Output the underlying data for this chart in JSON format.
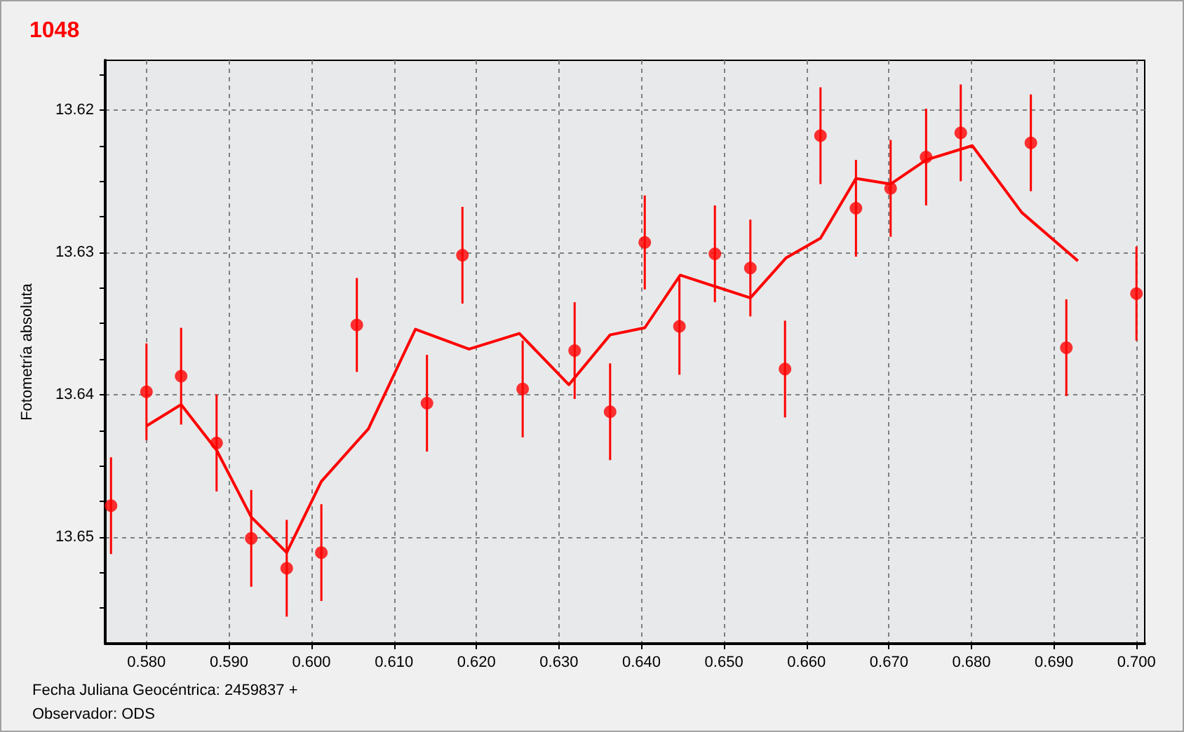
{
  "chart_data": {
    "type": "scatter",
    "title": "1048",
    "ylabel": "Fotometría absoluta",
    "annotations": [
      "Fecha Juliana Geocéntrica: 2459837 +",
      "Observador: ODS"
    ],
    "xlim": [
      0.575,
      0.701
    ],
    "ylim": [
      13.6575,
      13.6165
    ],
    "xticks": [
      {
        "value": 0.58,
        "label": "0.580"
      },
      {
        "value": 0.59,
        "label": "0.590"
      },
      {
        "value": 0.6,
        "label": "0.600"
      },
      {
        "value": 0.61,
        "label": "0.610"
      },
      {
        "value": 0.62,
        "label": "0.620"
      },
      {
        "value": 0.63,
        "label": "0.630"
      },
      {
        "value": 0.64,
        "label": "0.640"
      },
      {
        "value": 0.65,
        "label": "0.650"
      },
      {
        "value": 0.66,
        "label": "0.660"
      },
      {
        "value": 0.67,
        "label": "0.670"
      },
      {
        "value": 0.68,
        "label": "0.680"
      },
      {
        "value": 0.69,
        "label": "0.690"
      },
      {
        "value": 0.7,
        "label": "0.700"
      }
    ],
    "yticks": [
      {
        "value": 13.6175,
        "label": null
      },
      13.62,
      {
        "value": 13.6225,
        "label": null
      },
      {
        "value": 13.625,
        "label": null
      },
      {
        "value": 13.6275,
        "label": null
      },
      13.63,
      {
        "value": 13.6325,
        "label": null
      },
      {
        "value": 13.635,
        "label": null
      },
      {
        "value": 13.6375,
        "label": null
      },
      13.64,
      {
        "value": 13.6425,
        "label": null
      },
      {
        "value": 13.645,
        "label": null
      },
      {
        "value": 13.6475,
        "label": null
      },
      13.65,
      {
        "value": 13.6525,
        "label": null
      },
      {
        "value": 13.655,
        "label": null
      }
    ],
    "grid": true,
    "marker": "circle",
    "series": [
      {
        "color": "#ff0000",
        "x": [
          0.5757,
          0.58,
          0.5842,
          0.5885,
          0.5927,
          0.597,
          0.6012,
          0.6055,
          0.614,
          0.6183,
          0.6256,
          0.6319,
          0.6362,
          0.6404,
          0.6446,
          0.6489,
          0.6532,
          0.6574,
          0.6617,
          0.666,
          0.6702,
          0.6745,
          0.6787,
          0.6872,
          0.6915,
          0.7
        ],
        "values": [
          13.6478,
          13.6398,
          13.6387,
          13.6434,
          13.6501,
          13.6522,
          13.6511,
          13.6351,
          13.6406,
          13.6302,
          13.6396,
          13.6369,
          13.6412,
          13.6293,
          13.6352,
          13.6301,
          13.6311,
          13.6382,
          13.6218,
          13.6269,
          13.6255,
          13.6233,
          13.6216,
          13.6223,
          13.6367,
          13.6329
        ],
        "errors": [
          0.0034,
          0.0034,
          0.0034,
          0.0034,
          0.0034,
          0.0034,
          0.0034,
          0.0033,
          0.0034,
          0.0034,
          0.0034,
          0.0034,
          0.0034,
          0.0033,
          0.0034,
          0.0034,
          0.0034,
          0.0034,
          0.0034,
          0.0034,
          0.0034,
          0.0034,
          0.0034,
          0.0034,
          0.0034,
          0.0033
        ]
      },
      {
        "type": "line",
        "color": "#ff0000",
        "marker": "none",
        "line_style": "solid",
        "x": [
          0.58,
          0.5842,
          0.5885,
          0.5927,
          0.597,
          0.6012,
          0.6069,
          0.6126,
          0.6191,
          0.6252,
          0.6312,
          0.6362,
          0.6404,
          0.6447,
          0.6532,
          0.6575,
          0.6617,
          0.666,
          0.6702,
          0.6745,
          0.6801,
          0.6861,
          0.6929
        ],
        "values": [
          13.6422,
          13.6407,
          13.6439,
          13.6486,
          13.6511,
          13.6461,
          13.6424,
          13.6354,
          13.6368,
          13.6357,
          13.6393,
          13.6358,
          13.6353,
          13.6316,
          13.6332,
          13.6304,
          13.629,
          13.6248,
          13.6252,
          13.6235,
          13.6225,
          13.6272,
          13.6306
        ]
      }
    ]
  }
}
